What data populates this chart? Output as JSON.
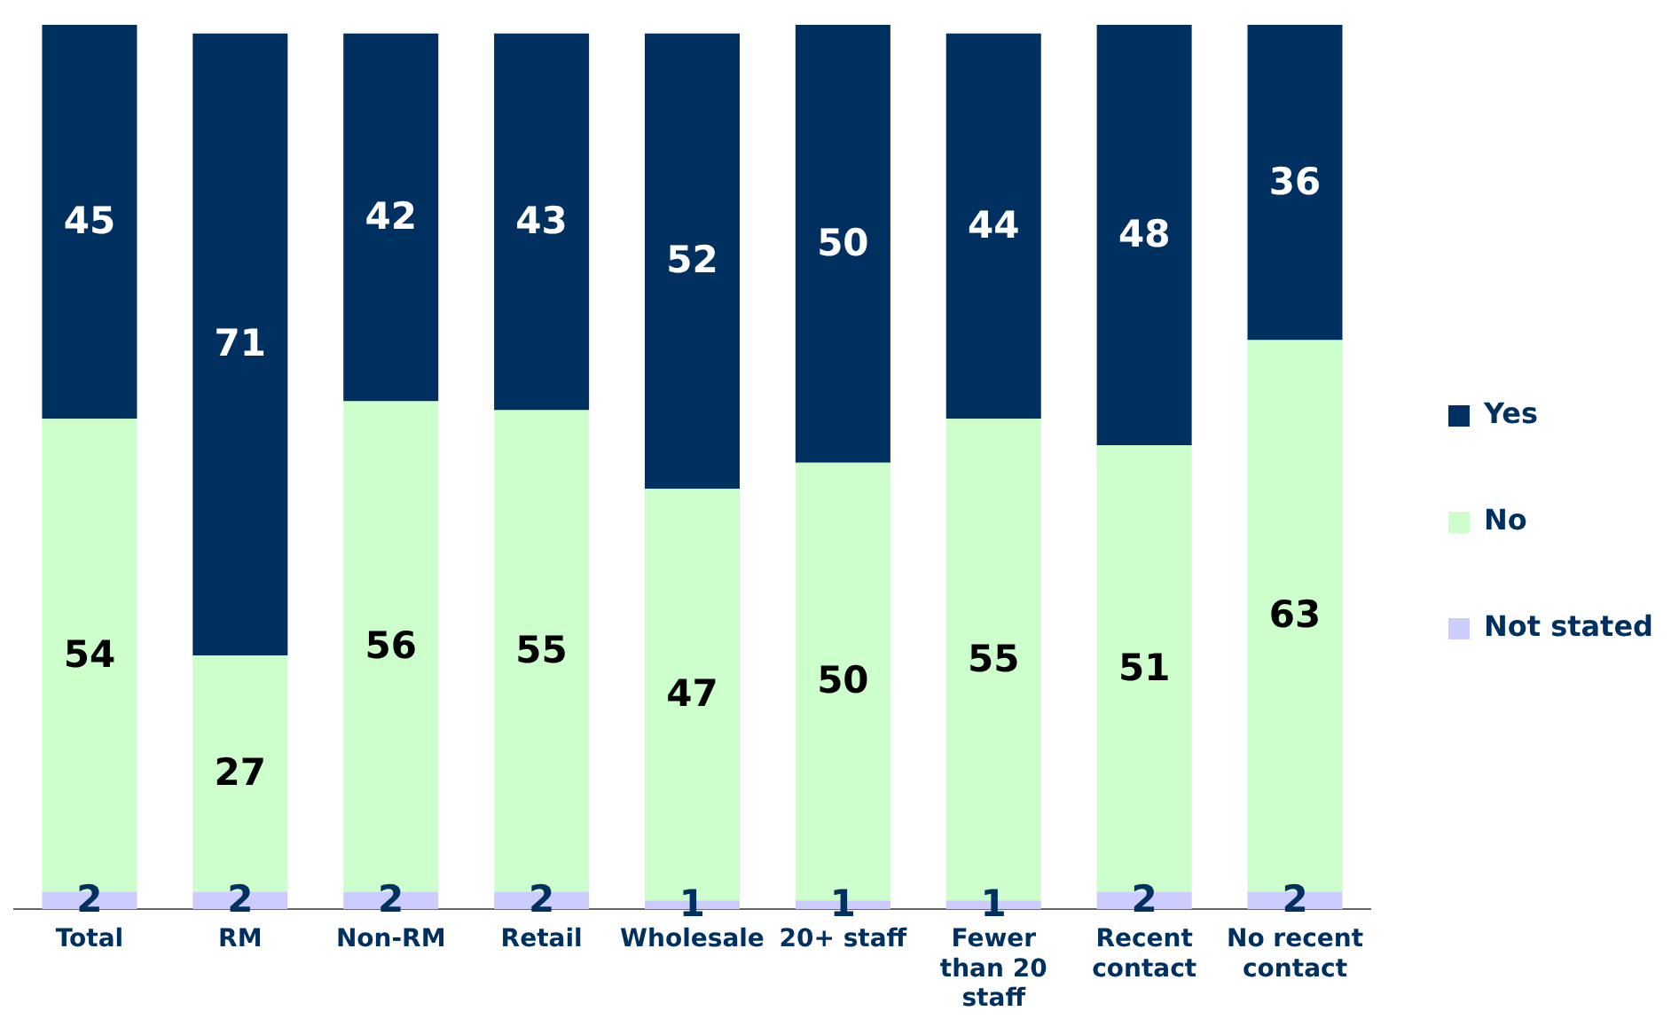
{
  "chart_data": {
    "type": "bar",
    "stacked": true,
    "data_labels": true,
    "grid": false,
    "legend": "right",
    "categories": [
      "Total",
      "RM",
      "Non-RM",
      "Retail",
      "Wholesale",
      "20+ staff",
      "Fewer than 20 staff",
      "Recent contact",
      "No recent contact"
    ],
    "series": [
      {
        "name": "Not stated",
        "color": "#ccccff",
        "values": [
          2,
          2,
          2,
          2,
          1,
          1,
          1,
          2,
          2
        ]
      },
      {
        "name": "No",
        "color": "#ccffcc",
        "values": [
          54,
          27,
          56,
          55,
          47,
          50,
          55,
          51,
          63
        ]
      },
      {
        "name": "Yes",
        "color": "#003060",
        "values": [
          45,
          71,
          42,
          43,
          52,
          50,
          44,
          48,
          36
        ]
      }
    ]
  }
}
